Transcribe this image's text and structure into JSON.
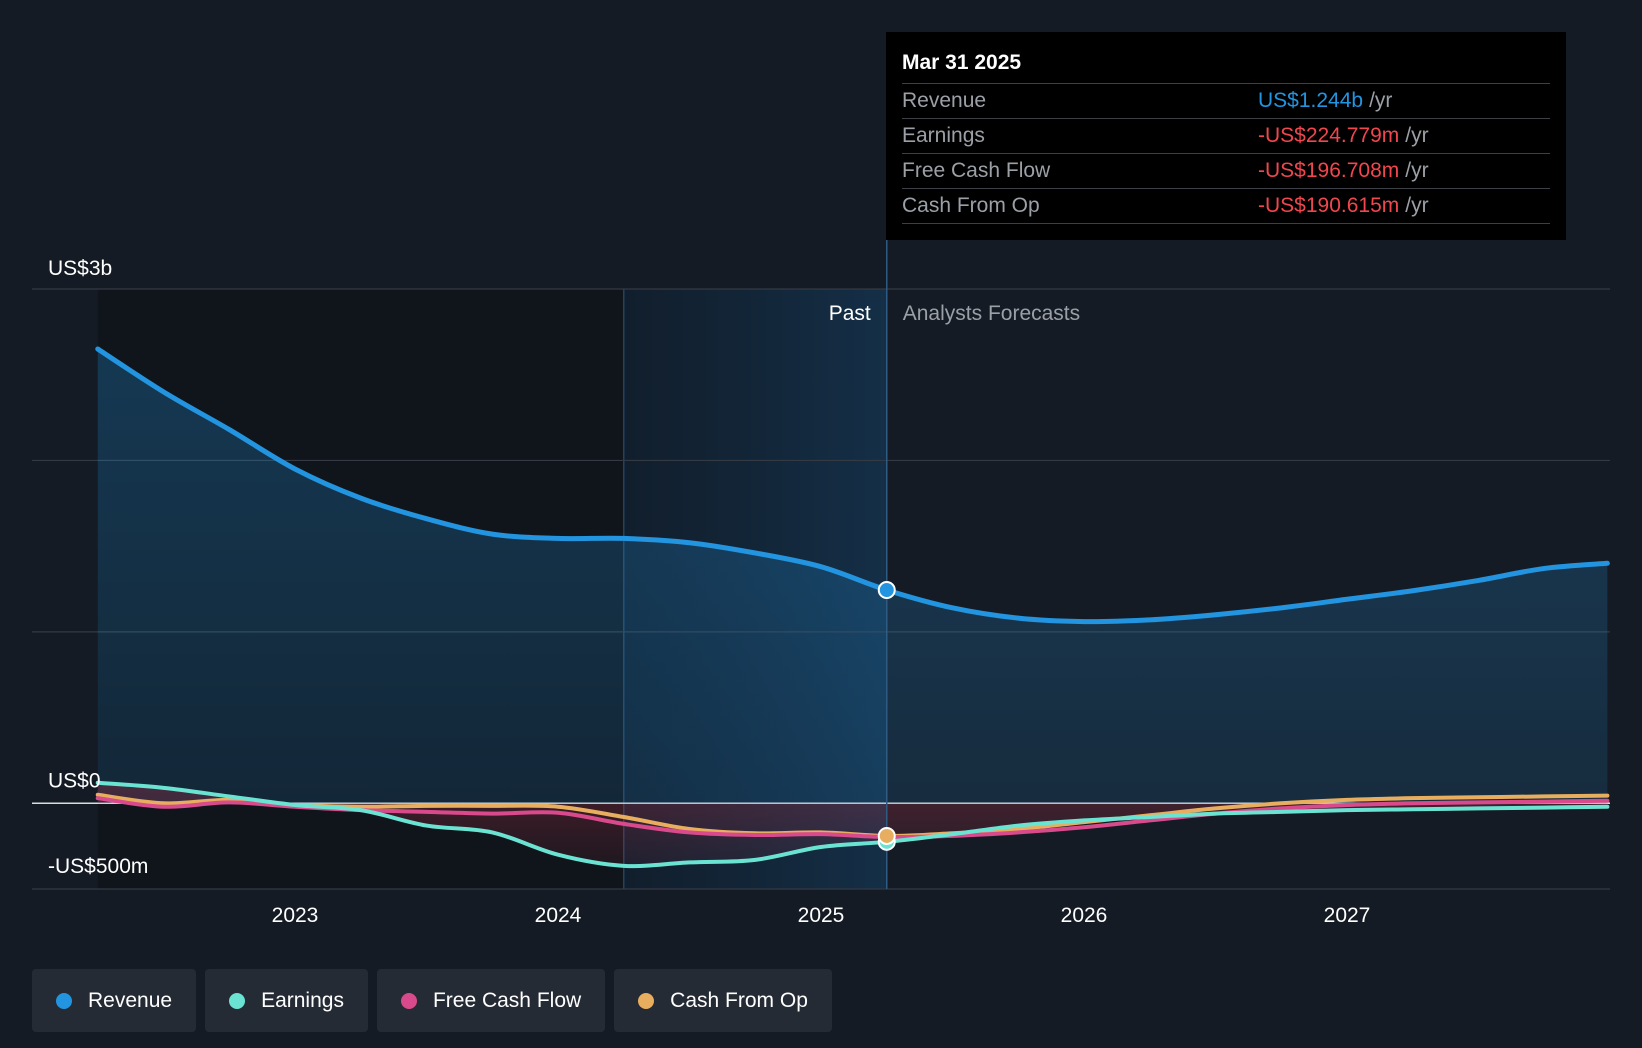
{
  "chart_data": {
    "type": "line",
    "y_axis": {
      "top_label": "US$3b",
      "zero_label": "US$0",
      "bottom_label": "-US$500m",
      "ylim": [
        -500000000,
        3000000000
      ],
      "gridlines": [
        3000000000,
        2000000000,
        1000000000,
        0,
        -500000000
      ]
    },
    "x_axis": {
      "ticks": [
        "2023",
        "2024",
        "2025",
        "2026",
        "2027"
      ],
      "tick_years": [
        2023,
        2024,
        2025,
        2026,
        2027
      ],
      "xlim": [
        2022.0,
        2028.0
      ]
    },
    "divider_labels": {
      "past": "Past",
      "forecast": "Analysts Forecasts"
    },
    "past_divider_year": 2025.25,
    "highlight_band_start_year": 2024.25,
    "series": [
      {
        "name": "Revenue",
        "color": "#2394df",
        "area": true,
        "points": [
          [
            2022.25,
            2650000000
          ],
          [
            2022.5,
            2400000000
          ],
          [
            2022.75,
            2180000000
          ],
          [
            2023.0,
            1950000000
          ],
          [
            2023.25,
            1780000000
          ],
          [
            2023.5,
            1660000000
          ],
          [
            2023.75,
            1570000000
          ],
          [
            2024.0,
            1545000000
          ],
          [
            2024.25,
            1545000000
          ],
          [
            2024.5,
            1520000000
          ],
          [
            2024.75,
            1460000000
          ],
          [
            2025.0,
            1380000000
          ],
          [
            2025.25,
            1244000000
          ],
          [
            2025.5,
            1140000000
          ],
          [
            2025.75,
            1080000000
          ],
          [
            2026.0,
            1060000000
          ],
          [
            2026.25,
            1070000000
          ],
          [
            2026.5,
            1100000000
          ],
          [
            2026.75,
            1140000000
          ],
          [
            2027.0,
            1190000000
          ],
          [
            2027.25,
            1240000000
          ],
          [
            2027.5,
            1300000000
          ],
          [
            2027.75,
            1370000000
          ],
          [
            2027.99,
            1400000000
          ]
        ]
      },
      {
        "name": "Earnings",
        "color": "#6be3d3",
        "points": [
          [
            2022.25,
            120000000
          ],
          [
            2022.5,
            90000000
          ],
          [
            2022.75,
            40000000
          ],
          [
            2023.0,
            -10000000
          ],
          [
            2023.25,
            -40000000
          ],
          [
            2023.5,
            -130000000
          ],
          [
            2023.75,
            -170000000
          ],
          [
            2024.0,
            -300000000
          ],
          [
            2024.25,
            -365000000
          ],
          [
            2024.5,
            -345000000
          ],
          [
            2024.75,
            -330000000
          ],
          [
            2025.0,
            -255000000
          ],
          [
            2025.25,
            -224779000
          ],
          [
            2025.5,
            -180000000
          ],
          [
            2025.75,
            -130000000
          ],
          [
            2026.0,
            -100000000
          ],
          [
            2026.25,
            -80000000
          ],
          [
            2026.5,
            -60000000
          ],
          [
            2026.75,
            -50000000
          ],
          [
            2027.0,
            -40000000
          ],
          [
            2027.25,
            -35000000
          ],
          [
            2027.5,
            -30000000
          ],
          [
            2027.75,
            -25000000
          ],
          [
            2027.99,
            -20000000
          ]
        ]
      },
      {
        "name": "Free Cash Flow",
        "color": "#d94a8c",
        "points": [
          [
            2022.25,
            30000000
          ],
          [
            2022.5,
            -20000000
          ],
          [
            2022.75,
            5000000
          ],
          [
            2023.0,
            -20000000
          ],
          [
            2023.25,
            -40000000
          ],
          [
            2023.5,
            -50000000
          ],
          [
            2023.75,
            -60000000
          ],
          [
            2024.0,
            -55000000
          ],
          [
            2024.25,
            -120000000
          ],
          [
            2024.5,
            -170000000
          ],
          [
            2024.75,
            -185000000
          ],
          [
            2025.0,
            -180000000
          ],
          [
            2025.25,
            -196708000
          ],
          [
            2025.5,
            -190000000
          ],
          [
            2025.75,
            -170000000
          ],
          [
            2026.0,
            -140000000
          ],
          [
            2026.25,
            -100000000
          ],
          [
            2026.5,
            -60000000
          ],
          [
            2026.75,
            -30000000
          ],
          [
            2027.0,
            -10000000
          ],
          [
            2027.25,
            0
          ],
          [
            2027.5,
            5000000
          ],
          [
            2027.75,
            10000000
          ],
          [
            2027.99,
            15000000
          ]
        ]
      },
      {
        "name": "Cash From Op",
        "color": "#e8ae5f",
        "points": [
          [
            2022.25,
            50000000
          ],
          [
            2022.5,
            0
          ],
          [
            2022.75,
            20000000
          ],
          [
            2023.0,
            -10000000
          ],
          [
            2023.25,
            -20000000
          ],
          [
            2023.5,
            -15000000
          ],
          [
            2023.75,
            -15000000
          ],
          [
            2024.0,
            -20000000
          ],
          [
            2024.25,
            -80000000
          ],
          [
            2024.5,
            -150000000
          ],
          [
            2024.75,
            -175000000
          ],
          [
            2025.0,
            -170000000
          ],
          [
            2025.25,
            -190615000
          ],
          [
            2025.5,
            -175000000
          ],
          [
            2025.75,
            -150000000
          ],
          [
            2026.0,
            -110000000
          ],
          [
            2026.25,
            -70000000
          ],
          [
            2026.5,
            -30000000
          ],
          [
            2026.75,
            0
          ],
          [
            2027.0,
            20000000
          ],
          [
            2027.25,
            30000000
          ],
          [
            2027.5,
            35000000
          ],
          [
            2027.75,
            40000000
          ],
          [
            2027.99,
            45000000
          ]
        ]
      }
    ]
  },
  "tooltip": {
    "date": "Mar 31 2025",
    "rows": [
      {
        "label": "Revenue",
        "value": "US$1.244b",
        "unit": "/yr",
        "color": "#2394df"
      },
      {
        "label": "Earnings",
        "value": "-US$224.779m",
        "unit": "/yr",
        "color": "#f0464e"
      },
      {
        "label": "Free Cash Flow",
        "value": "-US$196.708m",
        "unit": "/yr",
        "color": "#f0464e"
      },
      {
        "label": "Cash From Op",
        "value": "-US$190.615m",
        "unit": "/yr",
        "color": "#f0464e"
      }
    ]
  },
  "legend": [
    {
      "label": "Revenue",
      "color": "#2394df"
    },
    {
      "label": "Earnings",
      "color": "#6be3d3"
    },
    {
      "label": "Free Cash Flow",
      "color": "#d94a8c"
    },
    {
      "label": "Cash From Op",
      "color": "#e8ae5f"
    }
  ]
}
